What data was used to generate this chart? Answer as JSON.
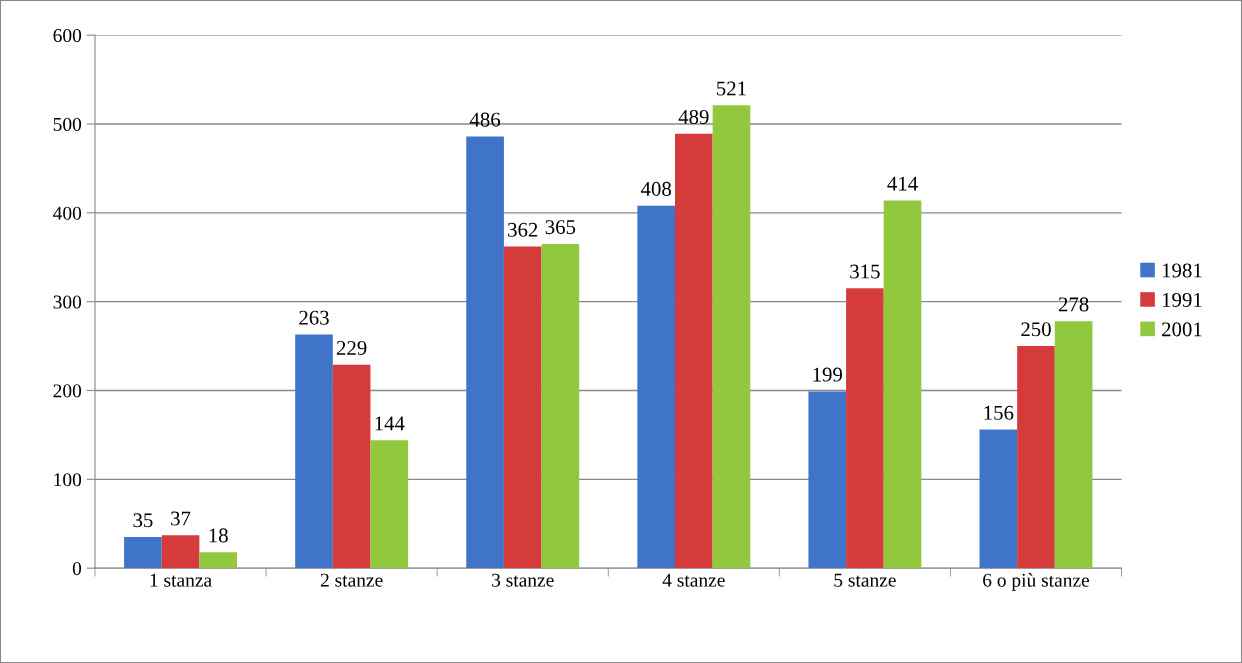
{
  "chart_data": {
    "type": "bar",
    "categories": [
      "1 stanza",
      "2 stanze",
      "3 stanze",
      "4 stanze",
      "5 stanze",
      "6 o più stanze"
    ],
    "series": [
      {
        "name": "1981",
        "color": "#3f74c8",
        "values": [
          35,
          263,
          486,
          408,
          199,
          156
        ]
      },
      {
        "name": "1991",
        "color": "#d63b3b",
        "values": [
          37,
          229,
          362,
          489,
          315,
          250
        ]
      },
      {
        "name": "2001",
        "color": "#92c83e",
        "values": [
          18,
          144,
          365,
          521,
          414,
          278
        ]
      }
    ],
    "ylim": [
      0,
      600
    ],
    "yticks": [
      0,
      100,
      200,
      300,
      400,
      500,
      600
    ],
    "grid": "y",
    "legend": "right",
    "data_labels": true
  }
}
